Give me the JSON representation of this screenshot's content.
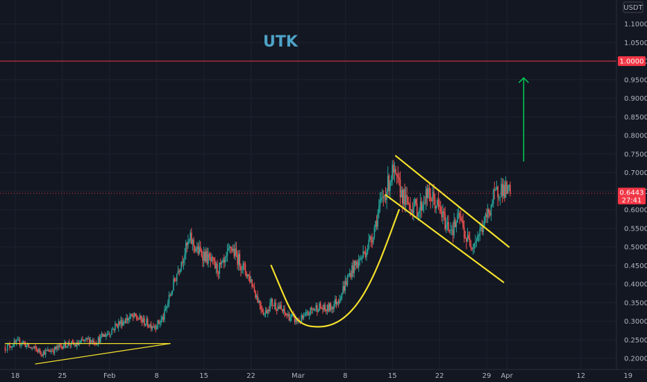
{
  "chart_data": {
    "type": "candlestick",
    "title": "UTK",
    "currency_label": "USDT",
    "y_ticks": [
      "1.1000",
      "1.0500",
      "1.0000",
      "0.9500",
      "0.9000",
      "0.8500",
      "0.8000",
      "0.7500",
      "0.7000",
      "0.6500",
      "0.6000",
      "0.5500",
      "0.5000",
      "0.4500",
      "0.4000",
      "0.3500",
      "0.3000",
      "0.2500",
      "0.2000"
    ],
    "ylim": [
      0.18,
      1.12
    ],
    "x_ticks": [
      {
        "label": "18",
        "day": 0
      },
      {
        "label": "25",
        "day": 7
      },
      {
        "label": "Feb",
        "day": 14
      },
      {
        "label": "8",
        "day": 21
      },
      {
        "label": "15",
        "day": 28
      },
      {
        "label": "22",
        "day": 35
      },
      {
        "label": "Mar",
        "day": 42
      },
      {
        "label": "8",
        "day": 49
      },
      {
        "label": "15",
        "day": 56
      },
      {
        "label": "22",
        "day": 63
      },
      {
        "label": "29",
        "day": 70
      },
      {
        "label": "Apr",
        "day": 73
      },
      {
        "label": "12",
        "day": 84
      },
      {
        "label": "19",
        "day": 91
      }
    ],
    "horizontal_line": {
      "value": 1.0,
      "label": "1.0000",
      "color": "#f23645"
    },
    "last_price": {
      "value": 0.6443,
      "label": "0.6443",
      "countdown": "27:41",
      "color": "#f23645"
    },
    "colors": {
      "up": "#26a69a",
      "down": "#ef5350",
      "annotation": "#f5e12b",
      "arrow": "#00c853",
      "grid": "#1e2230"
    },
    "price_path": [
      [
        -1.5,
        0.23
      ],
      [
        0,
        0.24
      ],
      [
        1,
        0.245
      ],
      [
        2,
        0.23
      ],
      [
        3,
        0.225
      ],
      [
        4,
        0.215
      ],
      [
        5,
        0.22
      ],
      [
        6,
        0.225
      ],
      [
        7,
        0.235
      ],
      [
        8,
        0.24
      ],
      [
        9,
        0.235
      ],
      [
        10,
        0.245
      ],
      [
        11,
        0.25
      ],
      [
        12,
        0.245
      ],
      [
        13,
        0.26
      ],
      [
        14,
        0.27
      ],
      [
        15,
        0.29
      ],
      [
        16,
        0.3
      ],
      [
        17,
        0.31
      ],
      [
        18,
        0.31
      ],
      [
        19,
        0.3
      ],
      [
        20,
        0.29
      ],
      [
        21,
        0.29
      ],
      [
        22,
        0.31
      ],
      [
        23,
        0.37
      ],
      [
        24,
        0.43
      ],
      [
        25,
        0.48
      ],
      [
        26,
        0.52
      ],
      [
        27,
        0.49
      ],
      [
        28,
        0.48
      ],
      [
        29,
        0.46
      ],
      [
        30,
        0.44
      ],
      [
        31,
        0.45
      ],
      [
        32,
        0.5
      ],
      [
        33,
        0.47
      ],
      [
        34,
        0.44
      ],
      [
        35,
        0.41
      ],
      [
        36,
        0.36
      ],
      [
        37,
        0.32
      ],
      [
        38,
        0.35
      ],
      [
        39,
        0.34
      ],
      [
        40,
        0.32
      ],
      [
        41,
        0.31
      ],
      [
        42,
        0.3
      ],
      [
        43,
        0.31
      ],
      [
        44,
        0.33
      ],
      [
        45,
        0.34
      ],
      [
        46,
        0.33
      ],
      [
        47,
        0.34
      ],
      [
        48,
        0.36
      ],
      [
        49,
        0.4
      ],
      [
        50,
        0.44
      ],
      [
        51,
        0.46
      ],
      [
        52,
        0.49
      ],
      [
        53,
        0.53
      ],
      [
        54,
        0.6
      ],
      [
        55,
        0.65
      ],
      [
        56,
        0.7
      ],
      [
        57,
        0.66
      ],
      [
        58,
        0.62
      ],
      [
        59,
        0.61
      ],
      [
        60,
        0.6
      ],
      [
        61,
        0.64
      ],
      [
        62,
        0.63
      ],
      [
        63,
        0.6
      ],
      [
        64,
        0.56
      ],
      [
        65,
        0.55
      ],
      [
        66,
        0.58
      ],
      [
        67,
        0.52
      ],
      [
        68,
        0.51
      ],
      [
        69,
        0.54
      ],
      [
        70,
        0.58
      ],
      [
        71,
        0.63
      ],
      [
        72,
        0.66
      ],
      [
        73,
        0.65
      ],
      [
        73.5,
        0.6443
      ]
    ],
    "annotations": {
      "cup": {
        "from": [
          38,
          0.45
        ],
        "bottom": [
          45,
          0.285
        ],
        "to": [
          57,
          0.6
        ]
      },
      "channel_upper": {
        "from": [
          56.5,
          0.745
        ],
        "to": [
          73.3,
          0.5
        ]
      },
      "channel_lower": {
        "from": [
          55,
          0.64
        ],
        "to": [
          72.5,
          0.405
        ]
      },
      "support_line": {
        "from": [
          -1.5,
          0.24
        ],
        "to": [
          23,
          0.24
        ]
      },
      "ascending_line": {
        "from": [
          3,
          0.185
        ],
        "to": [
          23,
          0.24
        ]
      },
      "up_arrow": {
        "from": [
          75.5,
          0.73
        ],
        "to": [
          75.5,
          0.955
        ]
      }
    }
  }
}
